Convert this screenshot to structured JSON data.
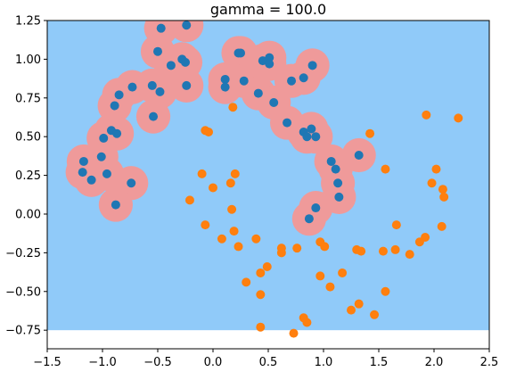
{
  "chart_data": {
    "type": "scatter",
    "title": "gamma = 100.0",
    "xlabel": "",
    "ylabel": "",
    "xlim": [
      -1.5,
      2.5
    ],
    "ylim": [
      -0.87,
      1.25
    ],
    "fill_ylim": [
      -0.75,
      1.25
    ],
    "x_ticks": [
      "−1.5",
      "−1.0",
      "−0.5",
      "0.0",
      "0.5",
      "1.0",
      "1.5",
      "2.0",
      "2.5"
    ],
    "x_tick_values": [
      -1.5,
      -1.0,
      -0.5,
      0.0,
      0.5,
      1.0,
      1.5,
      2.0,
      2.5
    ],
    "y_ticks": [
      "−0.75",
      "−0.50",
      "−0.25",
      "0.00",
      "0.25",
      "0.50",
      "0.75",
      "1.00",
      "1.25"
    ],
    "y_tick_values": [
      -0.75,
      -0.5,
      -0.25,
      0.0,
      0.25,
      0.5,
      0.75,
      1.0,
      1.25
    ],
    "grid": false,
    "background_region_color": "#90caf9",
    "decision_region_color": "#ef9a9a",
    "decision_region_radius": 0.11,
    "series": [
      {
        "color": "#1f77b4",
        "points": [
          [
            -0.47,
            1.2
          ],
          [
            -0.5,
            1.05
          ],
          [
            -0.24,
            1.22
          ],
          [
            -0.28,
            1.0
          ],
          [
            -0.25,
            0.98
          ],
          [
            -0.38,
            0.96
          ],
          [
            -0.24,
            0.83
          ],
          [
            -0.55,
            0.83
          ],
          [
            -0.48,
            0.79
          ],
          [
            -0.73,
            0.82
          ],
          [
            -0.85,
            0.77
          ],
          [
            -0.89,
            0.7
          ],
          [
            -0.54,
            0.63
          ],
          [
            -0.92,
            0.54
          ],
          [
            -0.87,
            0.52
          ],
          [
            -0.99,
            0.49
          ],
          [
            -1.01,
            0.37
          ],
          [
            -1.17,
            0.34
          ],
          [
            -1.18,
            0.27
          ],
          [
            -0.96,
            0.26
          ],
          [
            -1.1,
            0.22
          ],
          [
            -0.74,
            0.2
          ],
          [
            -0.88,
            0.06
          ],
          [
            0.11,
            0.87
          ],
          [
            0.11,
            0.82
          ],
          [
            0.23,
            1.04
          ],
          [
            0.25,
            1.04
          ],
          [
            0.28,
            0.86
          ],
          [
            0.45,
            0.99
          ],
          [
            0.51,
            1.01
          ],
          [
            0.51,
            0.97
          ],
          [
            0.41,
            0.78
          ],
          [
            0.55,
            0.72
          ],
          [
            0.71,
            0.86
          ],
          [
            0.82,
            0.88
          ],
          [
            0.9,
            0.96
          ],
          [
            0.67,
            0.59
          ],
          [
            0.82,
            0.53
          ],
          [
            0.85,
            0.5
          ],
          [
            0.89,
            0.55
          ],
          [
            0.93,
            0.5
          ],
          [
            1.07,
            0.34
          ],
          [
            1.11,
            0.29
          ],
          [
            1.13,
            0.2
          ],
          [
            1.14,
            0.11
          ],
          [
            1.32,
            0.38
          ],
          [
            0.93,
            0.04
          ],
          [
            0.87,
            -0.03
          ]
        ]
      },
      {
        "color": "#ff7f0e",
        "points": [
          [
            0.18,
            0.69
          ],
          [
            -0.07,
            0.54
          ],
          [
            -0.04,
            0.53
          ],
          [
            1.42,
            0.52
          ],
          [
            1.93,
            0.64
          ],
          [
            2.22,
            0.62
          ],
          [
            1.56,
            0.29
          ],
          [
            2.02,
            0.29
          ],
          [
            1.98,
            0.2
          ],
          [
            2.08,
            0.16
          ],
          [
            2.09,
            0.11
          ],
          [
            -0.1,
            0.26
          ],
          [
            0.2,
            0.26
          ],
          [
            0.0,
            0.17
          ],
          [
            0.16,
            0.2
          ],
          [
            -0.21,
            0.09
          ],
          [
            0.17,
            0.03
          ],
          [
            -0.07,
            -0.07
          ],
          [
            0.08,
            -0.16
          ],
          [
            0.19,
            -0.11
          ],
          [
            0.23,
            -0.21
          ],
          [
            0.39,
            -0.16
          ],
          [
            0.62,
            -0.22
          ],
          [
            0.62,
            -0.25
          ],
          [
            0.76,
            -0.22
          ],
          [
            0.97,
            -0.18
          ],
          [
            1.01,
            -0.21
          ],
          [
            1.3,
            -0.23
          ],
          [
            1.34,
            -0.24
          ],
          [
            1.54,
            -0.24
          ],
          [
            1.65,
            -0.23
          ],
          [
            1.66,
            -0.07
          ],
          [
            1.78,
            -0.26
          ],
          [
            1.87,
            -0.18
          ],
          [
            1.92,
            -0.15
          ],
          [
            2.07,
            -0.08
          ],
          [
            0.3,
            -0.44
          ],
          [
            0.43,
            -0.38
          ],
          [
            0.49,
            -0.34
          ],
          [
            0.43,
            -0.52
          ],
          [
            0.97,
            -0.4
          ],
          [
            1.06,
            -0.47
          ],
          [
            1.17,
            -0.38
          ],
          [
            1.56,
            -0.5
          ],
          [
            1.25,
            -0.62
          ],
          [
            1.32,
            -0.58
          ],
          [
            1.46,
            -0.65
          ],
          [
            0.43,
            -0.73
          ],
          [
            0.73,
            -0.77
          ],
          [
            0.82,
            -0.67
          ],
          [
            0.85,
            -0.7
          ]
        ]
      }
    ]
  }
}
